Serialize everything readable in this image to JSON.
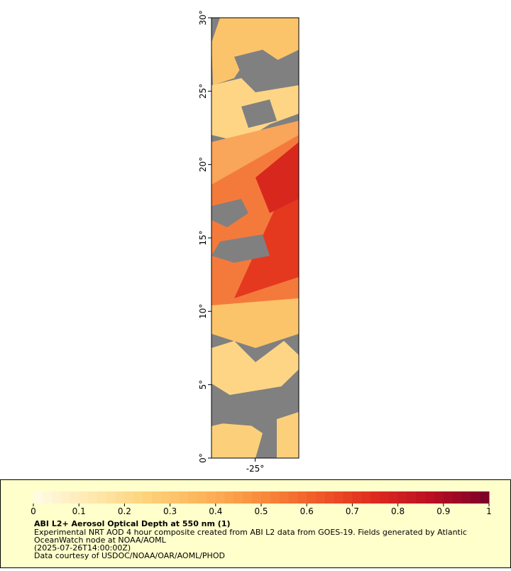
{
  "map": {
    "ylim": [
      0,
      30
    ],
    "yticks": [
      {
        "value": 0,
        "label": "0°"
      },
      {
        "value": 5,
        "label": "5°"
      },
      {
        "value": 10,
        "label": "10°"
      },
      {
        "value": 15,
        "label": "15°"
      },
      {
        "value": 20,
        "label": "20°"
      },
      {
        "value": 25,
        "label": "25°"
      },
      {
        "value": 30,
        "label": "30°"
      }
    ],
    "xlim": [
      -28,
      -22
    ],
    "xticks": [
      {
        "value": -25,
        "label": "-25°"
      }
    ]
  },
  "colorbar": {
    "lim": [
      0,
      1
    ],
    "ticks": [
      0,
      0.1,
      0.2,
      0.3,
      0.4,
      0.5,
      0.6,
      0.7,
      0.8,
      0.9,
      1
    ],
    "colors": [
      "#fffbe6",
      "#fee9b0",
      "#fdd27a",
      "#fcb45a",
      "#f98c3c",
      "#f05a28",
      "#de2a1e",
      "#b80f22",
      "#7a0028"
    ]
  },
  "caption": {
    "title": "ABI L2+ Aerosol Optical Depth at 550 nm (1)",
    "lines": [
      "Experimental NRT AOD 4 hour composite created from ABI L2 data from GOES-19. Fields generated by Atlantic",
      "OceanWatch node at NOAA/AOML",
      "(2025-07-26T14:00:00Z)",
      "Data courtesy of USDOC/NOAA/OAR/AOML/PHOD"
    ]
  }
}
